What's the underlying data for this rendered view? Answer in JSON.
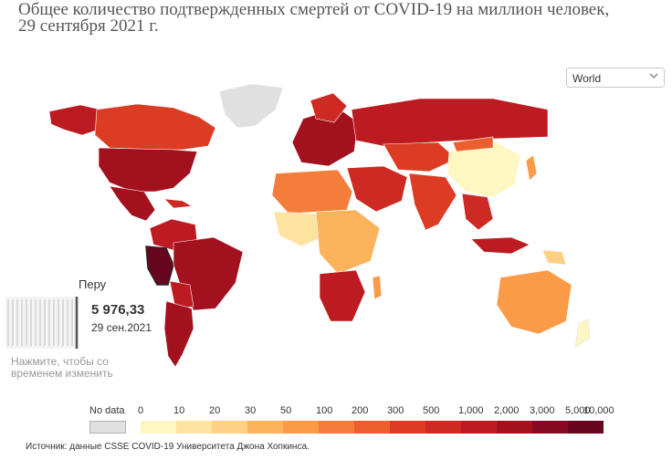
{
  "title": "Общее количество подтвержденных смертей от COVID-19 на миллион человек, 29 сентября 2021 г.",
  "region_select": {
    "value": "World",
    "icon": "chevron-down-icon"
  },
  "tooltip": {
    "country": "Перу",
    "value": "5 976,33",
    "date": "29 сен.2021",
    "hint": "Нажмите, чтобы со временем изменить"
  },
  "legend": {
    "no_data_label": "No data",
    "no_data_color": "#e0e0e0",
    "thresholds": [
      "0",
      "10",
      "20",
      "30",
      "50",
      "100",
      "200",
      "300",
      "500",
      "1,000",
      "2,000",
      "3,000",
      "5,000",
      "10,000"
    ],
    "colors": [
      "#fff7c2",
      "#fee3a0",
      "#fdd085",
      "#fdb35b",
      "#fb9a47",
      "#f47d3b",
      "#ec5e2d",
      "#dc3c24",
      "#cc2a22",
      "#bd1b22",
      "#a3111f",
      "#860a22",
      "#68061e"
    ]
  },
  "source": "Источник: данные CSSE COVID-19 Университета Джона Хопкинса."
}
